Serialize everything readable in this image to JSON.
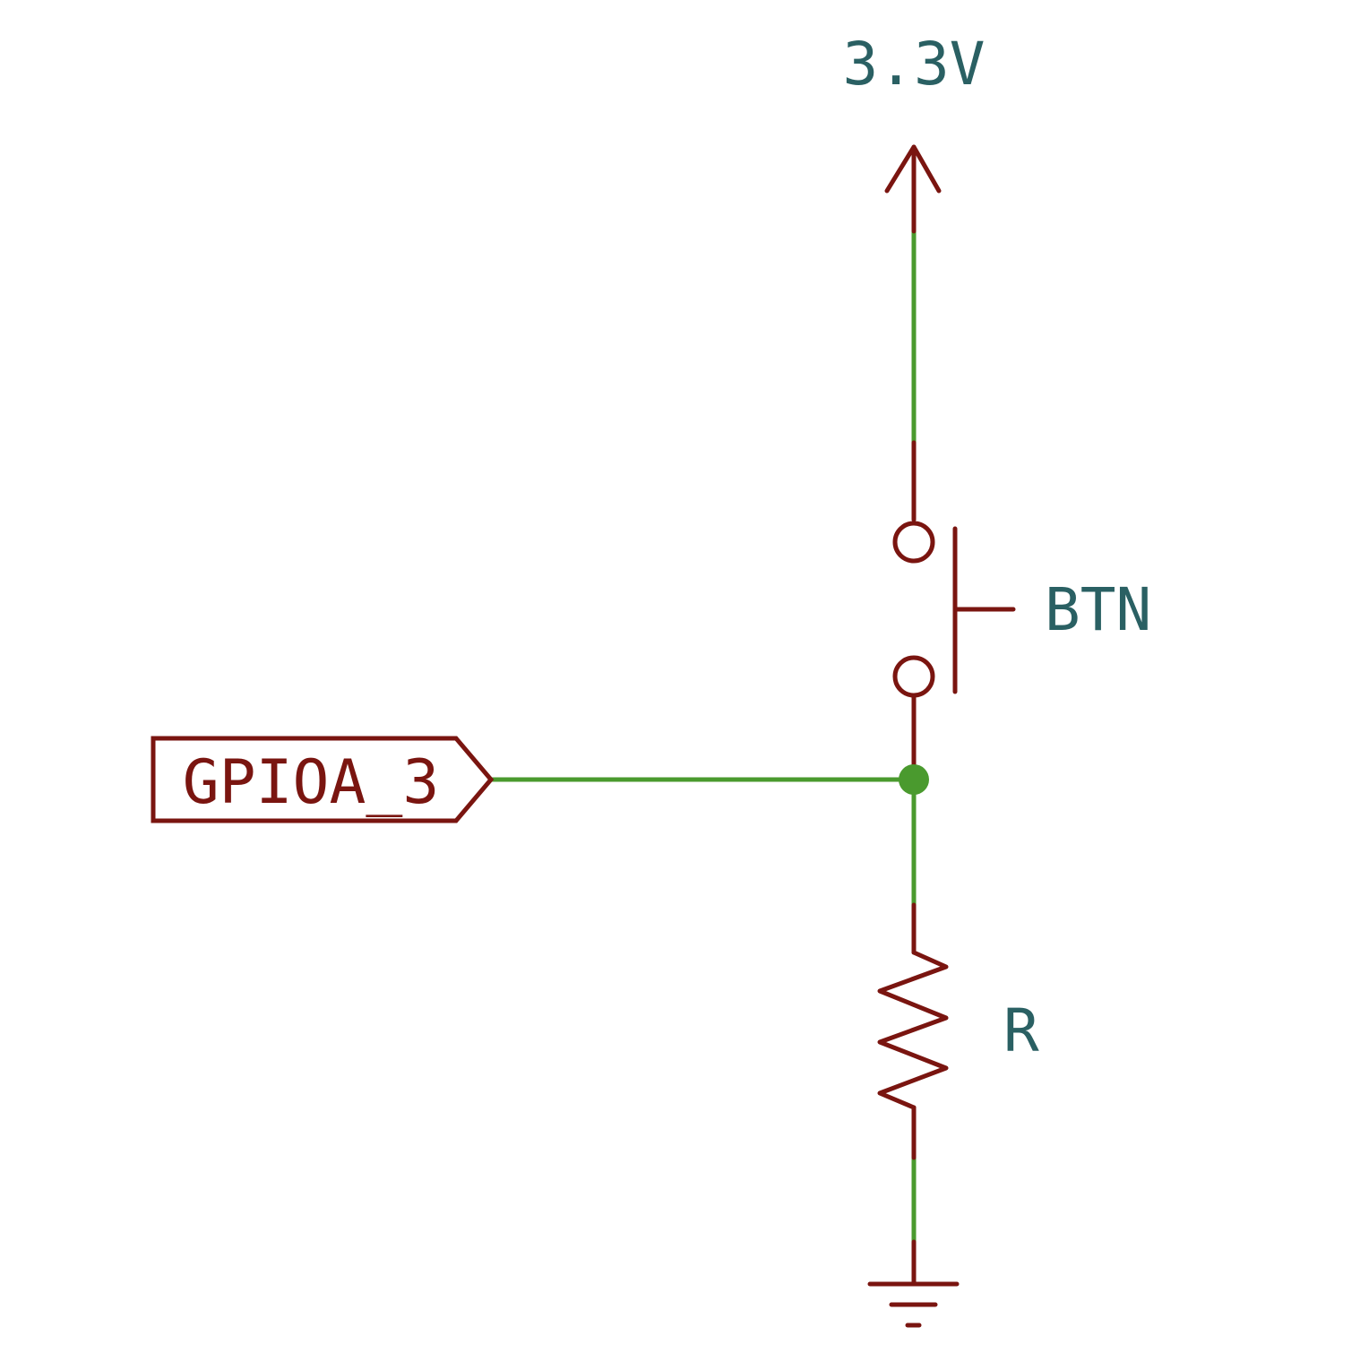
{
  "colors": {
    "background": "#ffffff",
    "symbol": "#7a1510",
    "wire": "#4a9a2e",
    "junction": "#4a9a2e",
    "text_value": "#2a6063",
    "text_label": "#7a1510"
  },
  "power": {
    "label": "3.3V",
    "icon": "power-arrow-icon"
  },
  "button": {
    "label": "BTN",
    "icon": "push-button-icon"
  },
  "resistor": {
    "label": "R",
    "icon": "resistor-icon"
  },
  "ground": {
    "icon": "ground-icon"
  },
  "net_label": {
    "text": "GPIOA_3",
    "icon": "hierarchical-label-icon"
  }
}
